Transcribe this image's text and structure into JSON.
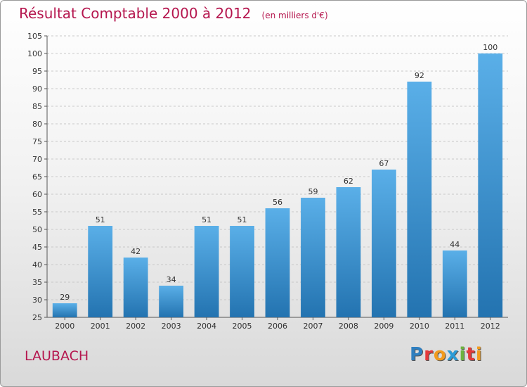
{
  "header": {
    "title": "Résultat Comptable 2000 à 2012",
    "unit": "(en milliers d'€)"
  },
  "commune": "LAUBACH",
  "logo": {
    "text": "Proxiti",
    "letters": [
      {
        "ch": "P",
        "color": "#2f7fc0"
      },
      {
        "ch": "r",
        "color": "#e5393a"
      },
      {
        "ch": "o",
        "color": "#f29b1d"
      },
      {
        "ch": "x",
        "color": "#2a9bd7"
      },
      {
        "ch": "i",
        "color": "#6db33f"
      },
      {
        "ch": "t",
        "color": "#e5393a"
      },
      {
        "ch": "i",
        "color": "#f29b1d"
      }
    ]
  },
  "colors": {
    "title": "#b5164e",
    "bar_top": "#5aafe8",
    "bar_bottom": "#2373b0",
    "grid": "#c8c8c8"
  },
  "chart_data": {
    "type": "bar",
    "categories": [
      "2000",
      "2001",
      "2002",
      "2003",
      "2004",
      "2005",
      "2006",
      "2007",
      "2008",
      "2009",
      "2010",
      "2011",
      "2012"
    ],
    "values": [
      29,
      51,
      42,
      34,
      51,
      51,
      56,
      59,
      62,
      67,
      92,
      44,
      100
    ],
    "title": "Résultat Comptable 2000 à 2012",
    "subtitle": "(en milliers d'€)",
    "ylim": [
      25,
      105
    ],
    "yticks": [
      25,
      30,
      35,
      40,
      45,
      50,
      55,
      60,
      65,
      70,
      75,
      80,
      85,
      90,
      95,
      100,
      105
    ],
    "grid": true,
    "data_labels": true
  }
}
